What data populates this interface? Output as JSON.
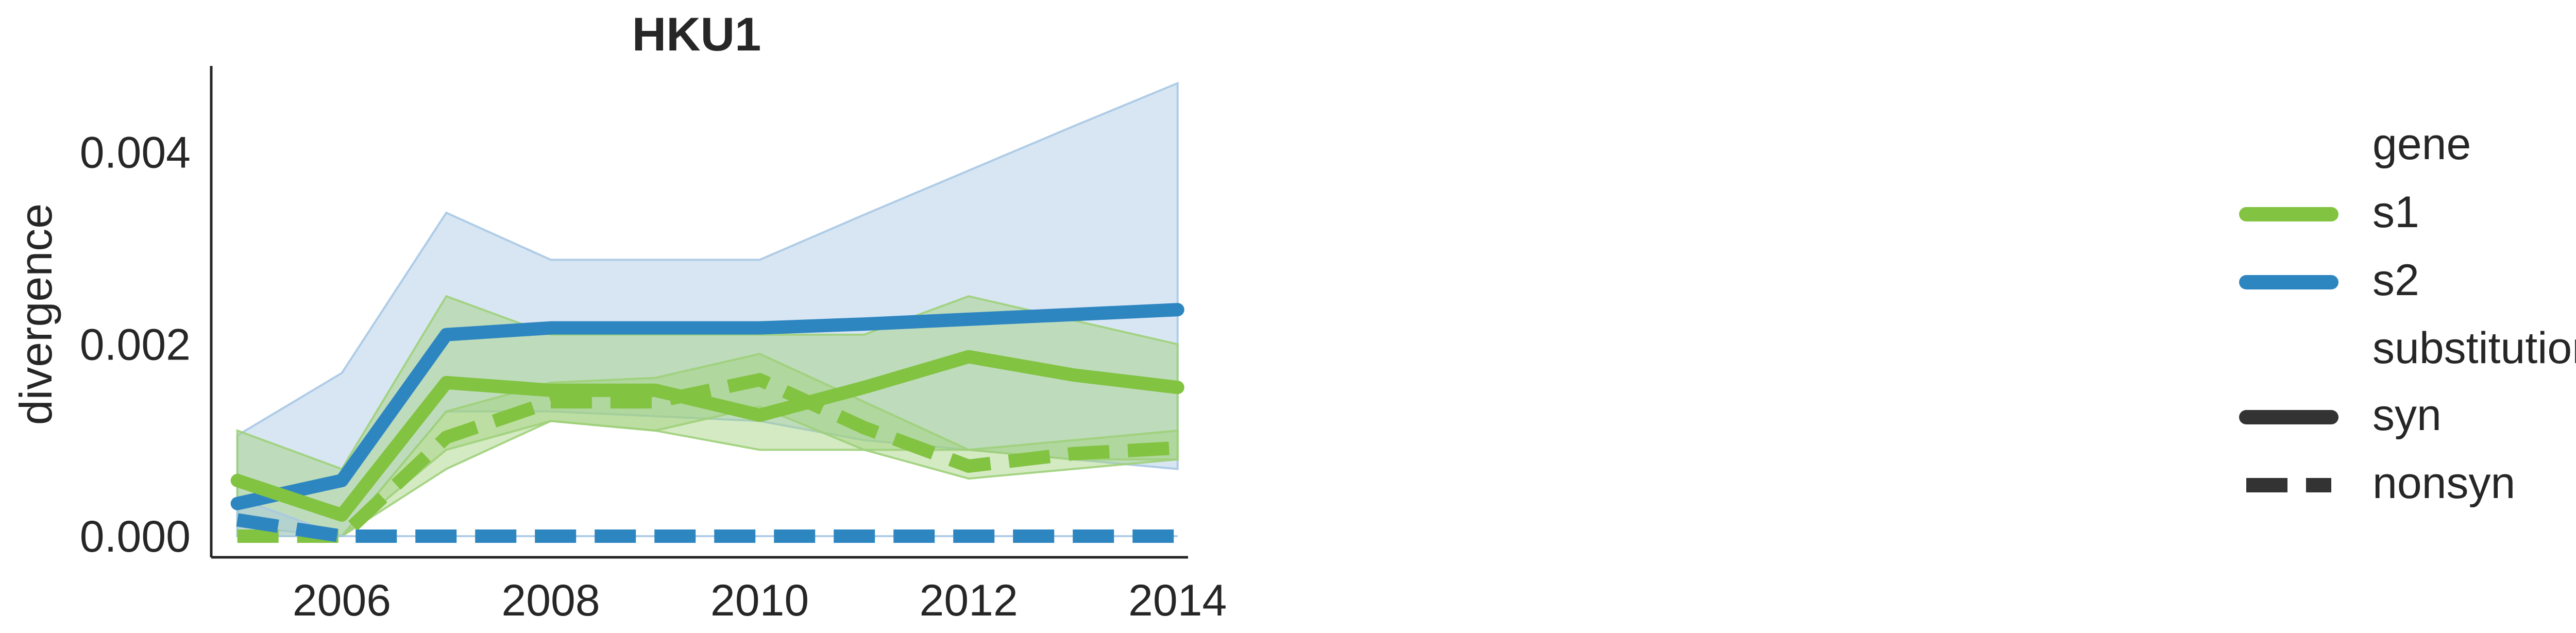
{
  "chart_data": {
    "type": "line",
    "title": "HKU1",
    "xlabel": "",
    "ylabel": "divergence",
    "xlim": [
      2004.75,
      2014.1
    ],
    "ylim": [
      -0.00022,
      0.0049
    ],
    "xticks": [
      2006,
      2008,
      2010,
      2012,
      2014
    ],
    "xtick_labels": [
      "2006",
      "2008",
      "2010",
      "2012",
      "2014"
    ],
    "yticks": [
      0.0,
      0.002,
      0.004
    ],
    "ytick_labels": [
      "0.000",
      "0.002",
      "0.004"
    ],
    "grid": false,
    "legend": {
      "placement": "right",
      "gene_title": "gene",
      "gene_entries": [
        {
          "label": "s1",
          "color": "#82c341"
        },
        {
          "label": "s2",
          "color": "#2e86c1"
        }
      ],
      "substitution_title": "substitution",
      "substitution_entries": [
        {
          "label": "syn",
          "style": "solid"
        },
        {
          "label": "nonsyn",
          "style": "dashed"
        }
      ]
    },
    "colors": {
      "s1": "#82c341",
      "s2": "#2e86c1",
      "s1_band": "#9fd07a",
      "s2_band": "#a9c8e4",
      "legend_line": "#333333"
    },
    "series": [
      {
        "gene": "s2",
        "substitution": "syn",
        "style": "solid",
        "x": [
          2005,
          2006,
          2007,
          2008,
          2009,
          2010,
          2011,
          2012,
          2013,
          2014
        ],
        "values": [
          0.00034,
          0.00058,
          0.0021,
          0.00217,
          0.00217,
          0.00217,
          0.00221,
          0.00226,
          0.00231,
          0.00236
        ],
        "ci_low": [
          0.0001,
          0.0,
          0.0013,
          0.0013,
          0.00125,
          0.0012,
          0.001,
          0.0009,
          0.0008,
          0.0007
        ],
        "ci_high": [
          0.00105,
          0.0017,
          0.00337,
          0.00288,
          0.00288,
          0.00288,
          0.00335,
          0.00381,
          0.00427,
          0.00472
        ]
      },
      {
        "gene": "s1",
        "substitution": "syn",
        "style": "solid",
        "x": [
          2005,
          2006,
          2007,
          2008,
          2009,
          2010,
          2011,
          2012,
          2013,
          2014
        ],
        "values": [
          0.00058,
          0.00022,
          0.0016,
          0.00152,
          0.00152,
          0.00126,
          0.00155,
          0.00187,
          0.00168,
          0.00155
        ],
        "ci_low": [
          0.0,
          0.0,
          0.0009,
          0.0012,
          0.0011,
          0.0009,
          0.0009,
          0.0009,
          0.0008,
          0.0008
        ],
        "ci_high": [
          0.0011,
          0.0007,
          0.0025,
          0.0021,
          0.0021,
          0.0021,
          0.0021,
          0.0025,
          0.00225,
          0.002
        ]
      },
      {
        "gene": "s1",
        "substitution": "nonsyn",
        "style": "dashed",
        "x": [
          2005,
          2006,
          2007,
          2008,
          2009,
          2010,
          2011,
          2012,
          2013,
          2014
        ],
        "values": [
          0.0,
          0.0,
          0.00103,
          0.0014,
          0.0014,
          0.00163,
          0.00113,
          0.00073,
          0.00086,
          0.00092
        ],
        "ci_low": [
          0.0,
          0.0,
          0.0007,
          0.0012,
          0.0011,
          0.00135,
          0.0009,
          0.0006,
          0.0007,
          0.0008
        ],
        "ci_high": [
          0.0,
          0.0,
          0.0013,
          0.0016,
          0.00165,
          0.0019,
          0.0014,
          0.0009,
          0.001,
          0.0011
        ]
      },
      {
        "gene": "s2",
        "substitution": "nonsyn",
        "style": "dashed",
        "x": [
          2005,
          2006,
          2007,
          2008,
          2009,
          2010,
          2011,
          2012,
          2013,
          2014
        ],
        "values": [
          0.00017,
          0.0,
          0.0,
          0.0,
          0.0,
          0.0,
          0.0,
          0.0,
          0.0,
          0.0
        ],
        "ci_low": [
          0.0,
          0.0,
          0.0,
          0.0,
          0.0,
          0.0,
          0.0,
          0.0,
          0.0,
          0.0
        ],
        "ci_high": [
          0.0004,
          0.0,
          0.0,
          0.0,
          0.0,
          0.0,
          0.0,
          0.0,
          0.0,
          0.0
        ]
      }
    ]
  }
}
